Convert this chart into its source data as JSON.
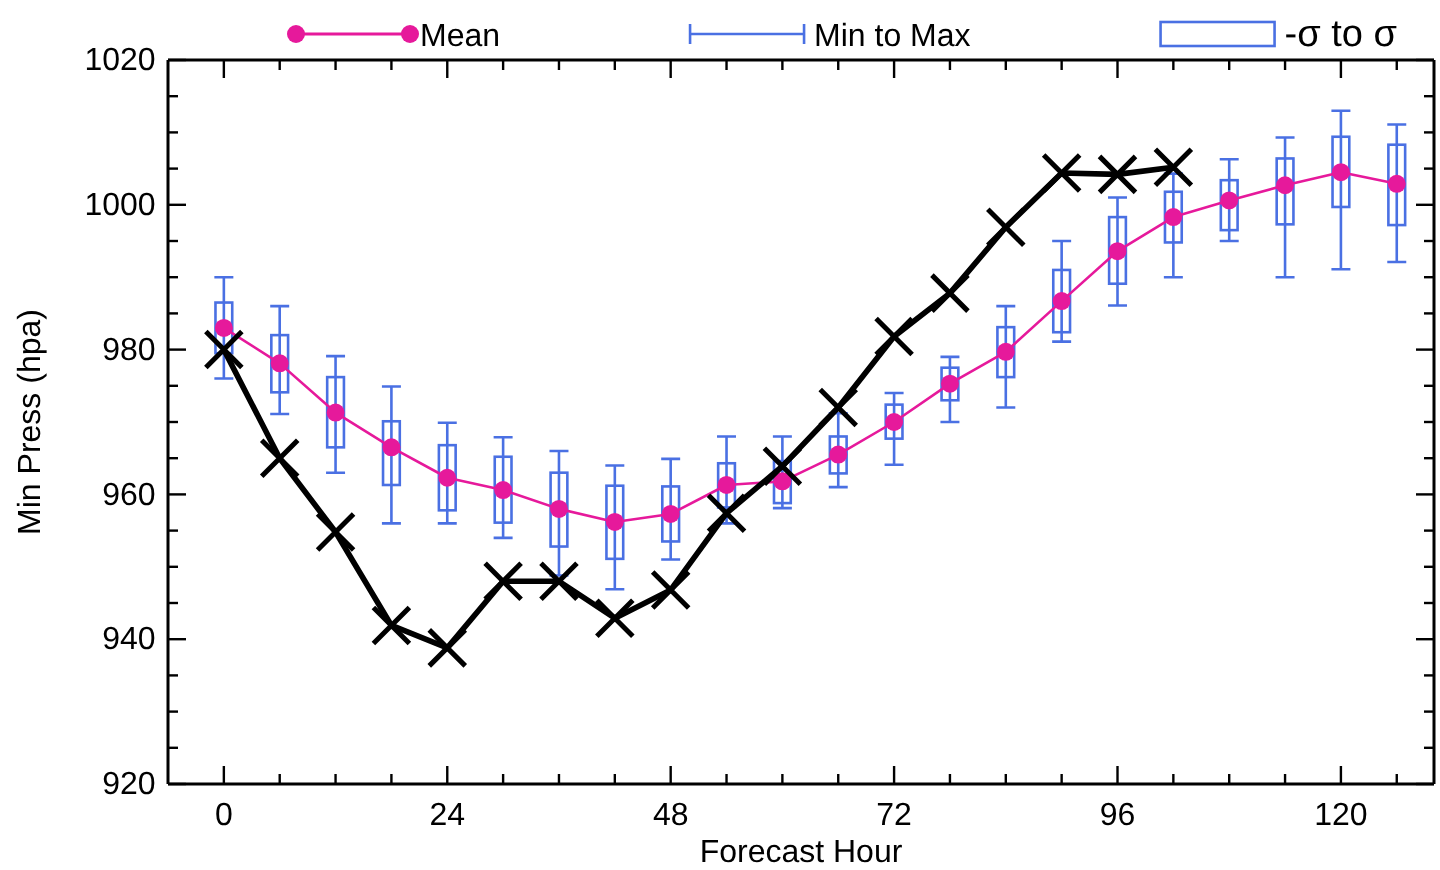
{
  "chart_data": {
    "type": "line",
    "xlabel": "Forecast Hour",
    "ylabel": "Min Press (hpa)",
    "xlim": [
      -6,
      130
    ],
    "ylim": [
      920,
      1020
    ],
    "xticks": [
      0,
      {
        "value": 6,
        "label": null
      },
      {
        "value": 12,
        "label": null
      },
      {
        "value": 18,
        "label": null
      },
      24,
      {
        "value": 30,
        "label": null
      },
      {
        "value": 36,
        "label": null
      },
      {
        "value": 42,
        "label": null
      },
      48,
      {
        "value": 54,
        "label": null
      },
      {
        "value": 60,
        "label": null
      },
      {
        "value": 66,
        "label": null
      },
      72,
      {
        "value": 78,
        "label": null
      },
      {
        "value": 84,
        "label": null
      },
      {
        "value": 90,
        "label": null
      },
      96,
      {
        "value": 102,
        "label": null
      },
      {
        "value": 108,
        "label": null
      },
      {
        "value": 114,
        "label": null
      },
      120,
      {
        "value": 126,
        "label": null
      }
    ],
    "yticks": [
      920,
      {
        "value": 925,
        "label": null
      },
      {
        "value": 930,
        "label": null
      },
      {
        "value": 935,
        "label": null
      },
      940,
      {
        "value": 945,
        "label": null
      },
      {
        "value": 950,
        "label": null
      },
      {
        "value": 955,
        "label": null
      },
      960,
      {
        "value": 965,
        "label": null
      },
      {
        "value": 970,
        "label": null
      },
      {
        "value": 975,
        "label": null
      },
      980,
      {
        "value": 985,
        "label": null
      },
      {
        "value": 990,
        "label": null
      },
      {
        "value": 995,
        "label": null
      },
      1000,
      {
        "value": 1005,
        "label": null
      },
      {
        "value": 1010,
        "label": null
      },
      {
        "value": 1015,
        "label": null
      },
      1020
    ],
    "grid": false,
    "legend": "top",
    "annotations": [
      "Min to Max"
    ],
    "series": [
      {
        "name": "Mean",
        "type": "line",
        "marker": "circle",
        "color": "#e6199b",
        "x": [
          0,
          6,
          12,
          18,
          24,
          30,
          36,
          42,
          48,
          54,
          60,
          66,
          72,
          78,
          84,
          90,
          96,
          102,
          108,
          114,
          120,
          126
        ],
        "values": [
          983.0,
          978.1,
          971.3,
          966.5,
          962.3,
          960.6,
          958.0,
          956.2,
          957.3,
          961.3,
          961.8,
          965.5,
          970.0,
          975.3,
          979.7,
          986.7,
          993.6,
          998.3,
          1000.6,
          1002.7,
          1004.5,
          1002.9
        ],
        "errors": [
          [
            976.0,
            990.0
          ],
          [
            971.1,
            986.0
          ],
          [
            963.0,
            979.1
          ],
          [
            956.0,
            974.9
          ],
          [
            956.0,
            969.9
          ],
          [
            954.0,
            967.9
          ],
          [
            948.8,
            966.0
          ],
          [
            946.9,
            964.0
          ],
          [
            951.0,
            964.9
          ],
          [
            956.0,
            968.0
          ],
          [
            958.1,
            968.0
          ],
          [
            961.0,
            971.2
          ],
          [
            964.1,
            974.0
          ],
          [
            970.0,
            979.0
          ],
          [
            972.0,
            986.0
          ],
          [
            981.1,
            995.0
          ],
          [
            986.1,
            1001.0
          ],
          [
            990.0,
            1004.3
          ],
          [
            995.0,
            1006.3
          ],
          [
            990.0,
            1009.3
          ],
          [
            991.1,
            1013.0
          ],
          [
            992.1,
            1011.1
          ]
        ]
      },
      {
        "name": "-σ to σ",
        "type": "bar",
        "color": "#4a70e3",
        "x": [
          0,
          6,
          12,
          18,
          24,
          30,
          36,
          42,
          48,
          54,
          60,
          66,
          72,
          78,
          84,
          90,
          96,
          102,
          108,
          114,
          120,
          126
        ],
        "base": [
          979.5,
          974.1,
          966.5,
          961.3,
          957.8,
          956.1,
          952.8,
          951.1,
          953.5,
          958.2,
          958.8,
          962.9,
          967.7,
          973.0,
          976.2,
          982.4,
          989.1,
          994.8,
          996.5,
          997.3,
          999.7,
          997.2
        ],
        "values": [
          7.0,
          7.9,
          9.7,
          8.8,
          9.0,
          9.1,
          10.2,
          10.1,
          7.6,
          6.1,
          5.8,
          5.1,
          4.7,
          4.5,
          6.9,
          8.6,
          9.2,
          7.0,
          6.9,
          9.1,
          9.7,
          11.1
        ]
      },
      {
        "marker": "cross",
        "color": "#000000",
        "x": [
          0,
          6,
          12,
          18,
          24,
          30,
          36,
          42,
          48,
          54,
          60,
          66,
          72,
          78,
          84,
          90,
          96,
          102
        ],
        "values": [
          980.0,
          965.0,
          954.8,
          941.9,
          938.8,
          948.0,
          948.0,
          942.9,
          946.8,
          957.4,
          963.9,
          972.0,
          981.8,
          987.8,
          996.9,
          1004.4,
          1004.2,
          1005.2
        ]
      }
    ]
  }
}
